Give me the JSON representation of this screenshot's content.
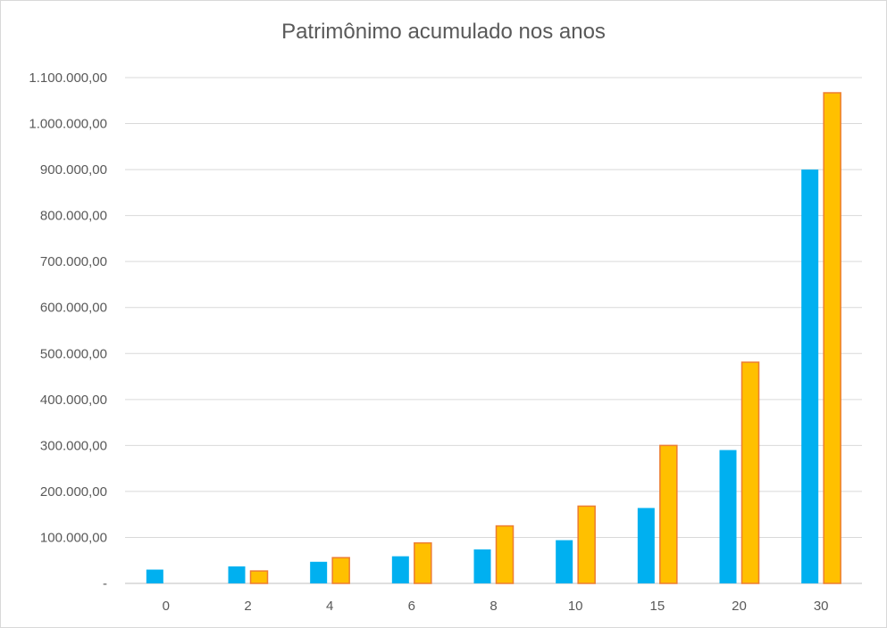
{
  "chart_data": {
    "type": "bar",
    "title": "Patrimônimo acumulado nos anos",
    "xlabel": "",
    "ylabel": "",
    "categories": [
      "0",
      "2",
      "4",
      "6",
      "8",
      "10",
      "15",
      "20",
      "30"
    ],
    "series": [
      {
        "color": "#00b0f0",
        "values": [
          30000,
          37000,
          47000,
          59000,
          74000,
          94000,
          164000,
          290000,
          900000
        ]
      },
      {
        "color": "#ffc000",
        "stroke": "#ed7d31",
        "values": [
          0,
          27000,
          56000,
          88000,
          125000,
          168000,
          300000,
          481000,
          1067000
        ]
      }
    ],
    "ylim": [
      0,
      1100000
    ],
    "ytick_labels": [
      "-",
      "100.000,00",
      "200.000,00",
      "300.000,00",
      "400.000,00",
      "500.000,00",
      "600.000,00",
      "700.000,00",
      "800.000,00",
      "900.000,00",
      "1.000.000,00",
      "1.100.000,00"
    ],
    "grid": true,
    "legend": "none"
  }
}
